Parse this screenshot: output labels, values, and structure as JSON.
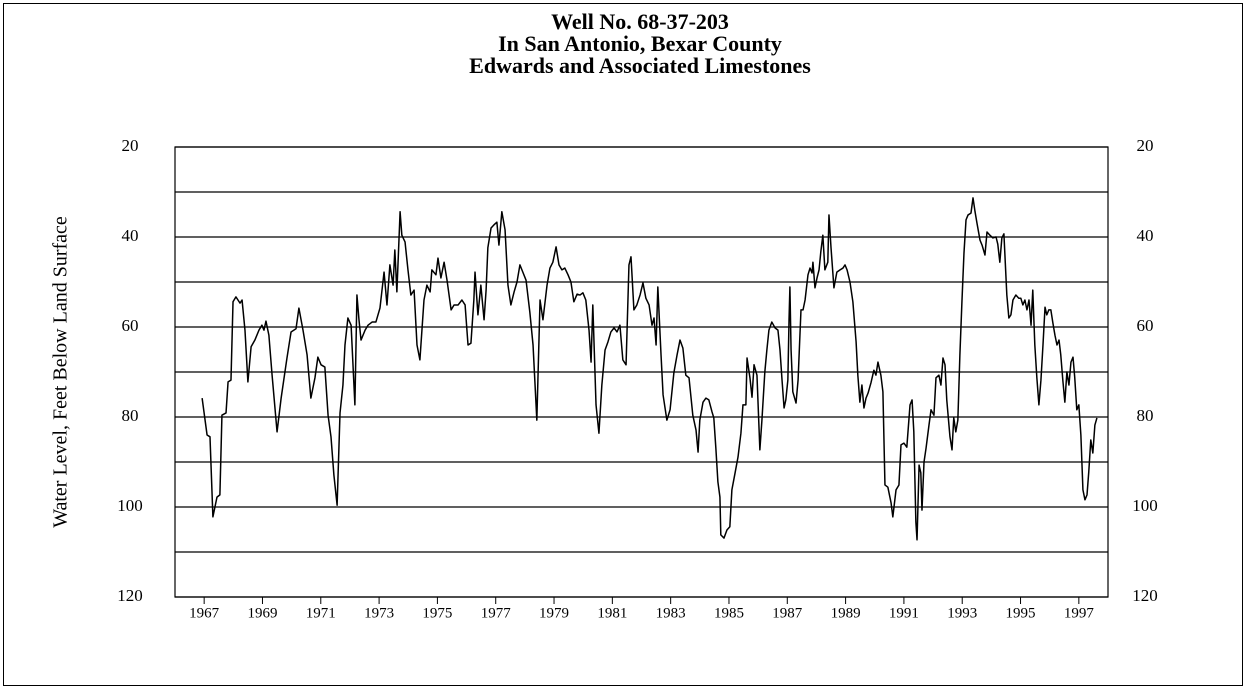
{
  "chart_data": {
    "type": "line",
    "title": [
      "Well No. 68-37-203",
      "In San Antonio, Bexar County",
      "Edwards and Associated Limestones"
    ],
    "y_label": "Water Level, Feet Below Land Surface",
    "y_inverted": true,
    "ylim": [
      20,
      120
    ],
    "yticks": [
      20,
      40,
      60,
      80,
      100,
      120
    ],
    "ygrid": [
      20,
      30,
      40,
      50,
      60,
      70,
      80,
      90,
      100,
      110,
      120
    ],
    "xlim": [
      1966,
      1998
    ],
    "xticks": [
      1967,
      1969,
      1971,
      1973,
      1975,
      1977,
      1979,
      1981,
      1983,
      1985,
      1987,
      1989,
      1991,
      1993,
      1995,
      1997
    ],
    "series": [
      {
        "color": "#000000",
        "x": [
          1966.93,
          1967.1,
          1967.2,
          1967.3,
          1967.44,
          1967.54,
          1967.61,
          1967.75,
          1967.82,
          1967.92,
          1967.99,
          1968.09,
          1968.23,
          1968.3,
          1968.4,
          1968.5,
          1968.61,
          1968.74,
          1968.88,
          1968.98,
          1969.05,
          1969.12,
          1969.22,
          1969.33,
          1969.5,
          1969.64,
          1969.84,
          1969.98,
          1970.15,
          1970.25,
          1970.39,
          1970.53,
          1970.66,
          1970.8,
          1970.9,
          1971.01,
          1971.14,
          1971.25,
          1971.35,
          1971.45,
          1971.56,
          1971.66,
          1971.76,
          1971.83,
          1971.93,
          1972.04,
          1972.17,
          1972.24,
          1972.31,
          1972.38,
          1972.52,
          1972.62,
          1972.76,
          1972.89,
          1973.03,
          1973.17,
          1973.27,
          1973.37,
          1973.48,
          1973.54,
          1973.61,
          1973.72,
          1973.78,
          1973.89,
          1973.99,
          1974.09,
          1974.2,
          1974.3,
          1974.4,
          1974.54,
          1974.64,
          1974.75,
          1974.81,
          1974.95,
          1975.02,
          1975.12,
          1975.23,
          1975.33,
          1975.47,
          1975.57,
          1975.71,
          1975.84,
          1975.95,
          1976.05,
          1976.15,
          1976.25,
          1976.29,
          1976.39,
          1976.49,
          1976.6,
          1976.67,
          1976.73,
          1976.84,
          1976.94,
          1977.04,
          1977.11,
          1977.21,
          1977.32,
          1977.42,
          1977.52,
          1977.63,
          1977.73,
          1977.83,
          1977.93,
          1978.04,
          1978.17,
          1978.28,
          1978.41,
          1978.52,
          1978.62,
          1978.76,
          1978.86,
          1978.96,
          1979.07,
          1979.17,
          1979.27,
          1979.37,
          1979.48,
          1979.58,
          1979.68,
          1979.79,
          1979.89,
          1979.99,
          1980.09,
          1980.2,
          1980.27,
          1980.33,
          1980.44,
          1980.54,
          1980.64,
          1980.75,
          1980.85,
          1980.95,
          1981.06,
          1981.16,
          1981.26,
          1981.36,
          1981.47,
          1981.5,
          1981.57,
          1981.64,
          1981.74,
          1981.84,
          1981.95,
          1982.05,
          1982.15,
          1982.26,
          1982.36,
          1982.43,
          1982.5,
          1982.56,
          1982.67,
          1982.74,
          1982.87,
          1982.98,
          1983.11,
          1983.22,
          1983.32,
          1983.42,
          1983.52,
          1983.63,
          1983.76,
          1983.87,
          1983.94,
          1984.0,
          1984.11,
          1984.21,
          1984.31,
          1984.42,
          1984.48,
          1984.55,
          1984.62,
          1984.69,
          1984.72,
          1984.83,
          1984.93,
          1985.03,
          1985.1,
          1985.21,
          1985.31,
          1985.41,
          1985.48,
          1985.58,
          1985.62,
          1985.72,
          1985.79,
          1985.86,
          1985.96,
          1986.06,
          1986.13,
          1986.23,
          1986.3,
          1986.37,
          1986.47,
          1986.58,
          1986.68,
          1986.75,
          1986.82,
          1986.89,
          1986.95,
          1987.02,
          1987.06,
          1987.09,
          1987.13,
          1987.19,
          1987.3,
          1987.37,
          1987.47,
          1987.54,
          1987.61,
          1987.71,
          1987.78,
          1987.85,
          1987.88,
          1987.95,
          1988.02,
          1988.09,
          1988.15,
          1988.22,
          1988.29,
          1988.39,
          1988.43,
          1988.5,
          1988.6,
          1988.7,
          1988.81,
          1988.91,
          1988.98,
          1989.05,
          1989.15,
          1989.25,
          1989.36,
          1989.42,
          1989.49,
          1989.56,
          1989.63,
          1989.7,
          1989.77,
          1989.87,
          1989.97,
          1990.04,
          1990.11,
          1990.21,
          1990.28,
          1990.35,
          1990.45,
          1990.56,
          1990.62,
          1990.73,
          1990.83,
          1990.9,
          1991.0,
          1991.1,
          1991.21,
          1991.28,
          1991.34,
          1991.41,
          1991.45,
          1991.52,
          1991.58,
          1991.62,
          1991.69,
          1991.76,
          1991.86,
          1991.93,
          1992.03,
          1992.1,
          1992.2,
          1992.27,
          1992.34,
          1992.41,
          1992.47,
          1992.58,
          1992.65,
          1992.71,
          1992.78,
          1992.85,
          1992.92,
          1992.99,
          1993.06,
          1993.13,
          1993.2,
          1993.3,
          1993.37,
          1993.44,
          1993.5,
          1993.61,
          1993.68,
          1993.78,
          1993.85,
          1993.95,
          1994.05,
          1994.16,
          1994.22,
          1994.29,
          1994.36,
          1994.43,
          1994.53,
          1994.6,
          1994.67,
          1994.74,
          1994.84,
          1994.94,
          1995.01,
          1995.08,
          1995.15,
          1995.22,
          1995.29,
          1995.36,
          1995.42,
          1995.49,
          1995.56,
          1995.63,
          1995.7,
          1995.77,
          1995.84,
          1995.9,
          1995.97,
          1996.04,
          1996.11,
          1996.18,
          1996.25,
          1996.32,
          1996.38,
          1996.45,
          1996.52,
          1996.59,
          1996.66,
          1996.73,
          1996.8,
          1996.86,
          1996.93,
          1997.0,
          1997.07,
          1997.14,
          1997.21,
          1997.28,
          1997.34,
          1997.41,
          1997.48,
          1997.55,
          1997.62
        ],
        "values": [
          75.8,
          84.0,
          84.4,
          102.2,
          97.8,
          97.3,
          79.6,
          79.1,
          72.2,
          71.8,
          54.4,
          53.3,
          54.7,
          54.0,
          60.7,
          72.2,
          64.4,
          62.9,
          60.7,
          59.6,
          60.7,
          58.7,
          61.8,
          70.7,
          83.3,
          75.8,
          66.9,
          61.1,
          60.4,
          55.8,
          60.7,
          66.2,
          75.8,
          71.3,
          66.7,
          68.4,
          68.9,
          79.6,
          84.4,
          92.9,
          99.6,
          79.1,
          72.9,
          64.0,
          58.0,
          59.6,
          77.3,
          52.9,
          58.4,
          62.9,
          60.7,
          59.6,
          58.9,
          58.9,
          55.8,
          47.8,
          55.1,
          46.2,
          50.7,
          42.9,
          52.2,
          34.4,
          39.6,
          41.1,
          47.3,
          52.9,
          51.8,
          64.0,
          67.3,
          54.0,
          50.7,
          52.2,
          47.3,
          48.4,
          44.7,
          49.1,
          45.6,
          49.6,
          56.2,
          55.1,
          55.1,
          54.0,
          55.1,
          64.0,
          63.6,
          54.0,
          47.8,
          57.3,
          50.7,
          58.4,
          51.8,
          42.4,
          38.0,
          37.3,
          36.7,
          41.8,
          34.4,
          38.4,
          50.7,
          55.1,
          52.2,
          50.0,
          46.2,
          47.8,
          49.6,
          56.7,
          64.0,
          80.7,
          54.0,
          58.4,
          50.7,
          46.9,
          45.6,
          42.2,
          46.2,
          47.3,
          46.9,
          48.4,
          50.0,
          54.4,
          52.7,
          52.9,
          52.4,
          54.0,
          60.7,
          67.8,
          55.1,
          77.3,
          83.6,
          72.9,
          65.1,
          63.3,
          61.1,
          60.2,
          61.1,
          59.6,
          67.3,
          68.4,
          61.8,
          46.2,
          44.4,
          56.2,
          55.1,
          52.9,
          50.2,
          53.6,
          55.1,
          59.6,
          58.0,
          64.0,
          51.1,
          66.2,
          75.1,
          80.7,
          78.4,
          70.2,
          66.2,
          62.9,
          64.7,
          70.7,
          71.3,
          79.6,
          82.9,
          87.8,
          80.7,
          76.7,
          75.8,
          76.2,
          78.9,
          80.2,
          86.9,
          94.4,
          97.8,
          106.2,
          106.9,
          105.1,
          104.4,
          96.2,
          92.4,
          88.9,
          83.6,
          77.3,
          77.3,
          66.9,
          71.3,
          75.6,
          68.4,
          70.7,
          87.3,
          80.7,
          70.0,
          65.1,
          60.7,
          58.9,
          60.2,
          60.7,
          65.1,
          71.8,
          78.0,
          76.2,
          71.8,
          58.4,
          51.1,
          65.1,
          74.4,
          76.9,
          71.8,
          56.2,
          56.2,
          54.0,
          48.4,
          46.9,
          48.0,
          45.6,
          51.3,
          49.1,
          47.3,
          43.3,
          39.6,
          47.3,
          45.6,
          35.1,
          42.4,
          51.3,
          47.8,
          47.3,
          46.9,
          46.2,
          47.3,
          50.0,
          54.4,
          63.3,
          70.7,
          76.7,
          72.9,
          78.0,
          75.8,
          74.7,
          72.4,
          69.6,
          70.7,
          67.8,
          70.7,
          74.4,
          95.1,
          95.6,
          99.1,
          102.2,
          96.2,
          95.1,
          86.2,
          85.8,
          86.7,
          77.3,
          76.2,
          83.3,
          103.3,
          107.3,
          90.7,
          92.4,
          100.7,
          90.0,
          86.9,
          81.8,
          78.4,
          79.6,
          71.3,
          70.7,
          72.9,
          66.9,
          68.4,
          76.2,
          84.4,
          87.3,
          80.2,
          83.3,
          80.7,
          66.2,
          54.4,
          43.6,
          36.2,
          35.1,
          34.7,
          31.3,
          34.4,
          36.7,
          40.7,
          41.8,
          44.0,
          38.9,
          39.6,
          40.2,
          40.0,
          41.6,
          45.6,
          40.2,
          39.3,
          52.9,
          58.0,
          57.3,
          54.0,
          52.9,
          53.6,
          53.6,
          55.1,
          54.0,
          56.2,
          54.0,
          59.6,
          51.8,
          64.0,
          71.3,
          77.3,
          71.8,
          64.0,
          55.6,
          57.3,
          56.2,
          56.2,
          59.1,
          61.8,
          64.0,
          62.9,
          66.2,
          71.8,
          76.7,
          70.0,
          72.9,
          67.8,
          66.7,
          71.3,
          78.4,
          77.3,
          84.0,
          96.2,
          98.4,
          97.3,
          92.2,
          85.1,
          88.0,
          81.8,
          80.2
        ]
      }
    ]
  }
}
